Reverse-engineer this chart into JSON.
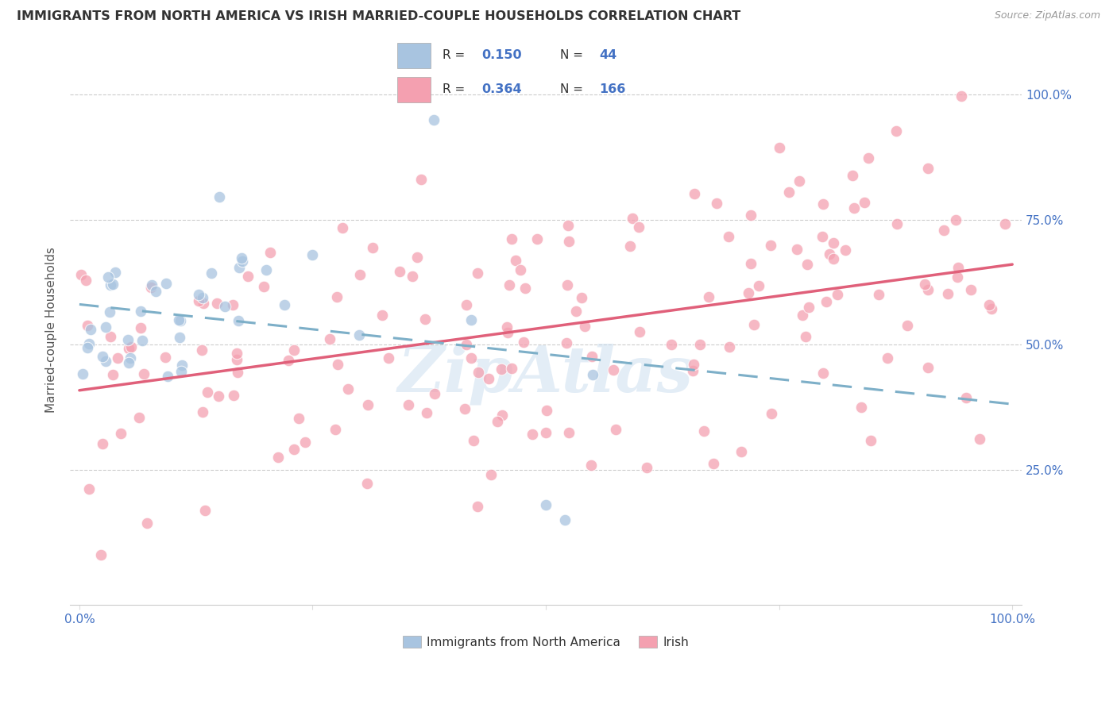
{
  "title": "IMMIGRANTS FROM NORTH AMERICA VS IRISH MARRIED-COUPLE HOUSEHOLDS CORRELATION CHART",
  "source": "Source: ZipAtlas.com",
  "ylabel": "Married-couple Households",
  "legend_label1": "Immigrants from North America",
  "legend_label2": "Irish",
  "R1": 0.15,
  "N1": 44,
  "R2": 0.364,
  "N2": 166,
  "blue_color": "#a8c4e0",
  "pink_color": "#f4a0b0",
  "blue_line_color": "#7dafc8",
  "pink_line_color": "#e0607a",
  "watermark_color": "#d0e4f5",
  "tick_color": "#4472c4",
  "grid_color": "#cccccc",
  "title_color": "#333333",
  "source_color": "#999999"
}
